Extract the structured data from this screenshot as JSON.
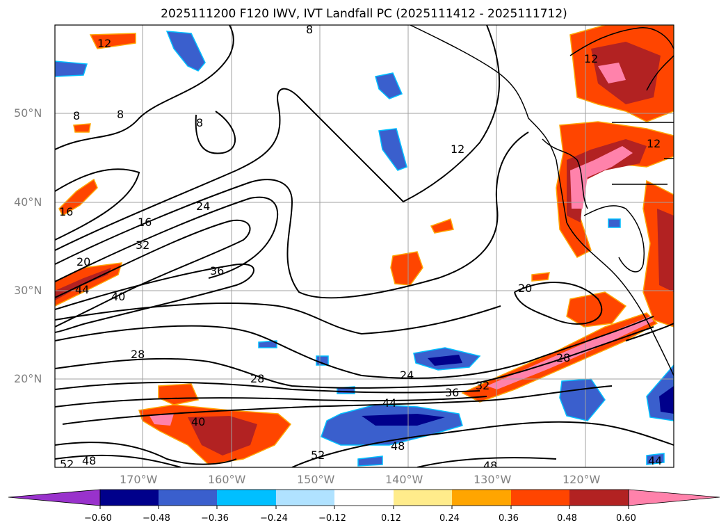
{
  "title": "2025111200 F120 IWV, IVT Landfall PC (2025111412 - 2025111712)",
  "lat_labels": [
    "50°N",
    "40°N",
    "30°N",
    "20°N"
  ],
  "lon_labels": [
    "170°W",
    "160°W",
    "150°W",
    "140°W",
    "130°W",
    "120°W"
  ],
  "contour_labels": [
    "12",
    "8",
    "8",
    "8",
    "8",
    "12",
    "12",
    "16",
    "16",
    "24",
    "20",
    "32",
    "36",
    "44",
    "40",
    "20",
    "28",
    "28",
    "28",
    "24",
    "36",
    "32",
    "44",
    "40",
    "48",
    "52",
    "48",
    "52",
    "48",
    "44",
    "12"
  ],
  "colorbar": {
    "ticks": [
      "−0.60",
      "−0.48",
      "−0.36",
      "−0.24",
      "−0.12",
      "0.12",
      "0.24",
      "0.36",
      "0.48",
      "0.60"
    ],
    "colors": [
      "#9932cc",
      "#00008b",
      "#3a5fcd",
      "#00bfff",
      "#b0e2ff",
      "#ffffff",
      "#ffec8b",
      "#ffa500",
      "#ff4500",
      "#b22222",
      "#ff82ab"
    ]
  }
}
